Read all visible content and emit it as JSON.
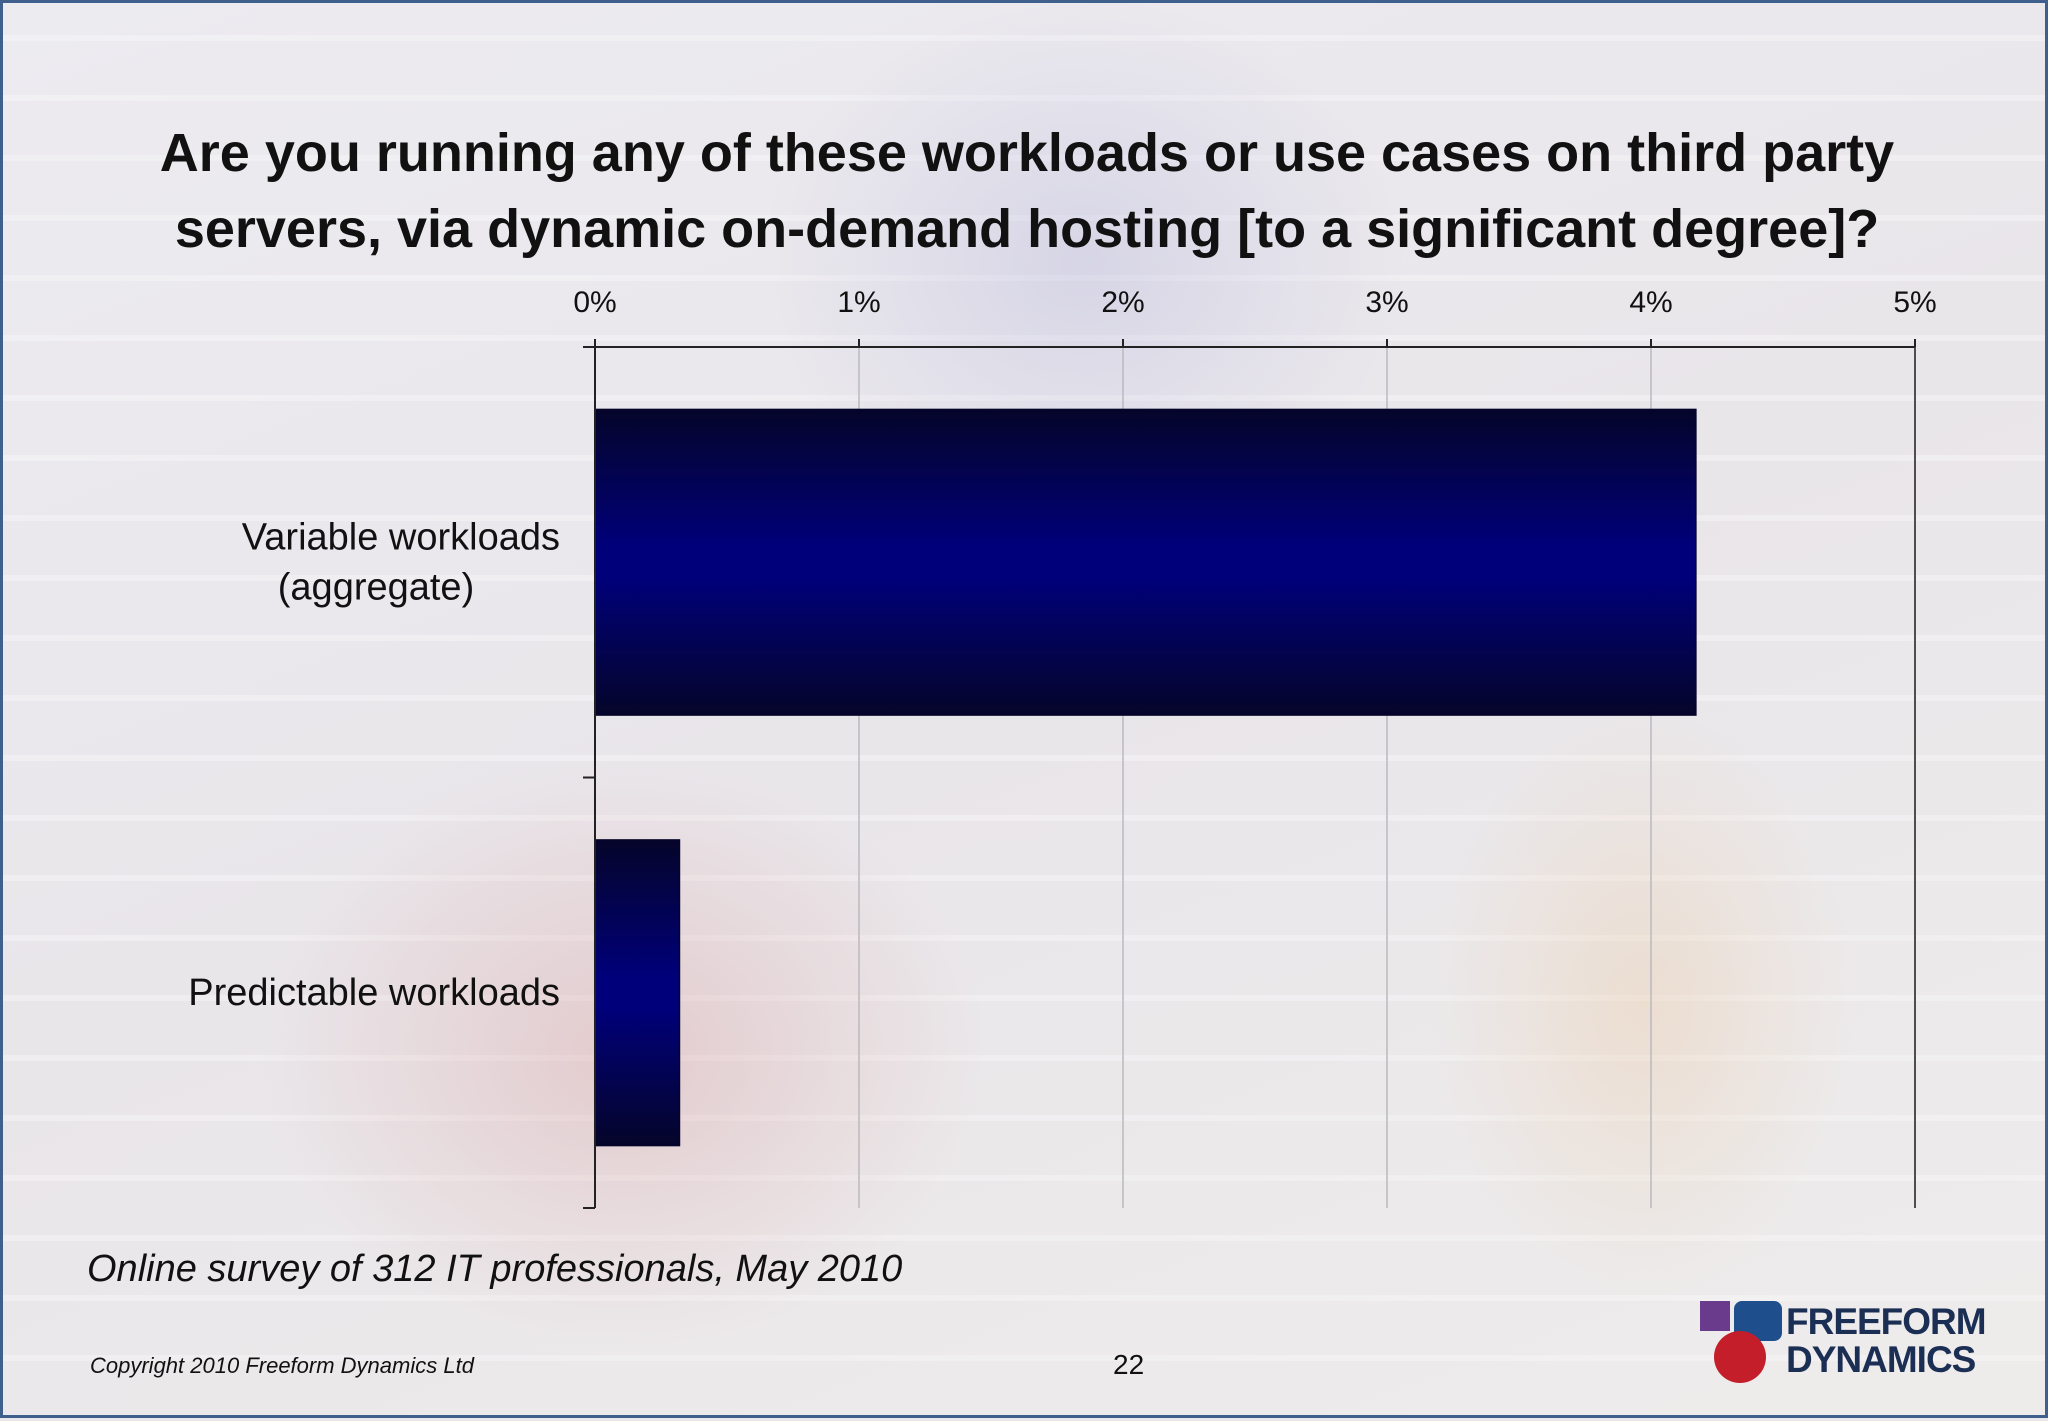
{
  "title": {
    "line1": "Are you running any of these workloads or use cases on third party",
    "line2": "servers, via dynamic on-demand hosting [to a significant degree]?"
  },
  "chart_data": {
    "type": "bar",
    "orientation": "horizontal",
    "title": "Are you running any of these workloads or use cases on third party servers, via dynamic on-demand hosting [to a significant degree]?",
    "categories": [
      "Variable workloads (aggregate)",
      "Predictable workloads"
    ],
    "category_lines": [
      [
        "Variable workloads",
        "(aggregate)"
      ],
      [
        "Predictable workloads"
      ]
    ],
    "values": [
      4.17,
      0.32
    ],
    "xlim": [
      0,
      5
    ],
    "x_ticks": [
      0,
      1,
      2,
      3,
      4,
      5
    ],
    "x_tick_labels": [
      "0%",
      "1%",
      "2%",
      "3%",
      "4%",
      "5%"
    ],
    "x_axis_position": "top",
    "grid": true,
    "bar_color": "#00007a",
    "bar_edge_color": "#05052a"
  },
  "footer": {
    "survey_note": "Online survey of 312 IT professionals, May 2010",
    "copyright": "Copyright 2010 Freeform Dynamics Ltd",
    "page_number": "22"
  },
  "logo": {
    "line1": "FREEFORM",
    "line2": "DYNAMICS",
    "colors": [
      "#6a3b8c",
      "#1f4e8c",
      "#c41e2b"
    ]
  }
}
